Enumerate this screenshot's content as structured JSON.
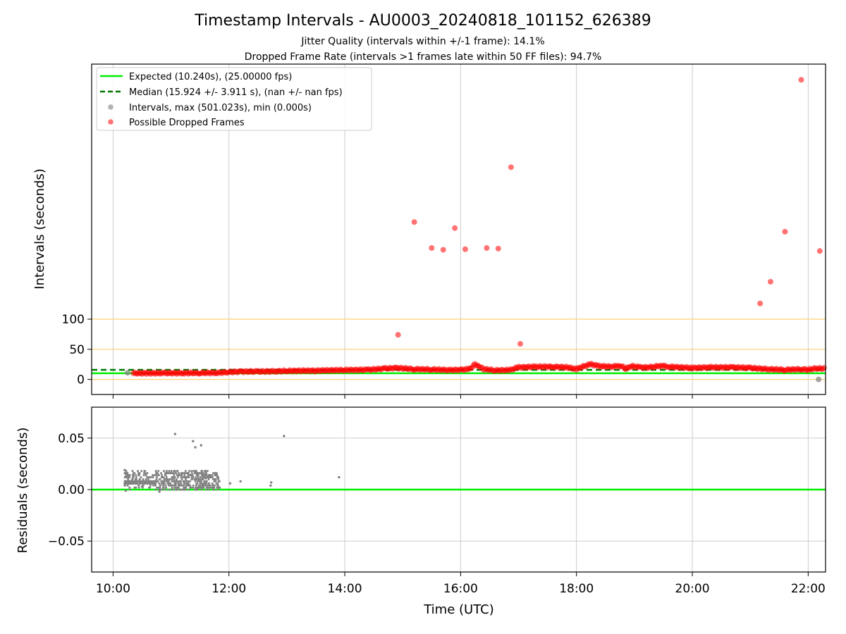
{
  "title": "Timestamp Intervals - AU0003_20240818_101152_626389",
  "subtitle_1": "Jitter Quality (intervals within +/-1 frame): 14.1%",
  "subtitle_2": "Dropped Frame Rate (intervals >1 frames late within 50 FF files): 94.7%",
  "colors": {
    "expected": "#00ee00",
    "median": "#007700",
    "intervals": "#808080",
    "dropped": "#ff0000",
    "threshold": "#ffd070",
    "grid": "#cccccc"
  },
  "chart_data": [
    {
      "type": "scatter",
      "panel": "top",
      "xlabel": "",
      "ylabel": "Intervals (seconds)",
      "x_unit": "hours UTC",
      "xlim": [
        9.63,
        22.3
      ],
      "ylim": [
        -25,
        523
      ],
      "xticks": [
        10,
        12,
        14,
        16,
        18,
        20,
        22
      ],
      "yticks": [
        0,
        50,
        100
      ],
      "ytick_labels": [
        "0",
        "50",
        "100"
      ],
      "grid": "vertical",
      "legend_position": "upper-left",
      "reference_lines": {
        "expected": 10.24,
        "median": 15.924,
        "thresholds": [
          0,
          50,
          100
        ]
      },
      "legend": [
        {
          "label": "Expected (10.240s), (25.00000 fps)",
          "kind": "line",
          "color": "#00ee00"
        },
        {
          "label": "Median (15.924 +/- 3.911 s), (nan +/- nan fps)",
          "kind": "dashed",
          "color": "#007700"
        },
        {
          "label": "Intervals, max (501.023s), min (0.000s)",
          "kind": "marker",
          "color": "#a0a0a0"
        },
        {
          "label": "Possible Dropped Frames",
          "kind": "marker",
          "color": "#ff6060"
        }
      ],
      "dropped_band": [
        [
          10.35,
          10.2
        ],
        [
          10.6,
          10.3
        ],
        [
          10.9,
          10.4
        ],
        [
          11.2,
          10.5
        ],
        [
          11.5,
          10.7
        ],
        [
          11.8,
          11.0
        ],
        [
          12.0,
          12.0
        ],
        [
          12.2,
          13.0
        ],
        [
          12.5,
          13.0
        ],
        [
          12.8,
          13.5
        ],
        [
          13.0,
          14.0
        ],
        [
          13.5,
          14.5
        ],
        [
          14.0,
          15.5
        ],
        [
          14.4,
          16.0
        ],
        [
          14.7,
          18.0
        ],
        [
          14.9,
          19.0
        ],
        [
          15.2,
          17.0
        ],
        [
          15.5,
          16.5
        ],
        [
          15.8,
          15.5
        ],
        [
          16.0,
          16.0
        ],
        [
          16.15,
          17.0
        ],
        [
          16.25,
          25.0
        ],
        [
          16.32,
          22.0
        ],
        [
          16.4,
          17.0
        ],
        [
          16.6,
          15.0
        ],
        [
          16.85,
          15.5
        ],
        [
          17.0,
          20.0
        ],
        [
          17.3,
          21.0
        ],
        [
          17.6,
          21.0
        ],
        [
          17.85,
          20.0
        ],
        [
          18.0,
          17.0
        ],
        [
          18.1,
          21.0
        ],
        [
          18.25,
          25.0
        ],
        [
          18.4,
          22.0
        ],
        [
          18.6,
          21.0
        ],
        [
          18.75,
          23.0
        ],
        [
          18.85,
          18.0
        ],
        [
          18.95,
          22.0
        ],
        [
          19.1,
          20.0
        ],
        [
          19.3,
          20.0
        ],
        [
          19.45,
          23.0
        ],
        [
          19.6,
          21.0
        ],
        [
          20.0,
          19.0
        ],
        [
          20.3,
          20.0
        ],
        [
          20.7,
          20.0
        ],
        [
          21.0,
          19.0
        ],
        [
          21.3,
          17.0
        ],
        [
          21.6,
          16.0
        ],
        [
          21.9,
          17.0
        ],
        [
          22.0,
          16.0
        ],
        [
          22.1,
          18.0
        ],
        [
          22.3,
          18.0
        ]
      ],
      "dropped_outliers": [
        [
          14.92,
          74
        ],
        [
          15.2,
          261
        ],
        [
          15.5,
          218
        ],
        [
          15.7,
          215
        ],
        [
          15.9,
          251
        ],
        [
          16.08,
          216
        ],
        [
          16.45,
          218
        ],
        [
          16.65,
          217
        ],
        [
          16.87,
          352
        ],
        [
          17.03,
          59
        ],
        [
          21.17,
          126
        ],
        [
          21.35,
          162
        ],
        [
          21.6,
          245
        ],
        [
          21.88,
          497
        ],
        [
          22.2,
          213
        ]
      ],
      "interval_points": [
        [
          10.25,
          11.0
        ],
        [
          22.18,
          0.0
        ]
      ]
    },
    {
      "type": "scatter",
      "panel": "bottom",
      "xlabel": "Time (UTC)",
      "ylabel": "Residuals (seconds)",
      "xlim": [
        9.63,
        22.3
      ],
      "ylim": [
        -0.08,
        0.08
      ],
      "xticks": [
        10,
        12,
        14,
        16,
        18,
        20,
        22
      ],
      "xtick_labels": [
        "10:00",
        "12:00",
        "14:00",
        "16:00",
        "18:00",
        "20:00",
        "22:00"
      ],
      "yticks": [
        0.05,
        0.0,
        -0.05
      ],
      "ytick_labels": [
        "0.05",
        "0.00",
        "−0.05"
      ],
      "grid": "both",
      "reference_line": 0.0,
      "cluster": {
        "x_range": [
          10.2,
          11.85
        ],
        "y_range": [
          0.0,
          0.018
        ]
      },
      "residual_points": [
        [
          11.07,
          0.054
        ],
        [
          11.38,
          0.047
        ],
        [
          11.42,
          0.041
        ],
        [
          11.52,
          0.043
        ],
        [
          12.95,
          0.052
        ],
        [
          13.9,
          0.012
        ],
        [
          12.2,
          0.008
        ],
        [
          12.02,
          0.006
        ],
        [
          12.73,
          0.007
        ],
        [
          12.72,
          0.004
        ],
        [
          10.2,
          0.019
        ],
        [
          10.24,
          0.016
        ],
        [
          10.22,
          -0.001
        ],
        [
          10.8,
          -0.002
        ],
        [
          11.8,
          0.012
        ],
        [
          11.83,
          0.002
        ],
        [
          11.6,
          0.011
        ],
        [
          11.3,
          0.016
        ],
        [
          11.55,
          0.016
        ],
        [
          10.5,
          0.003
        ]
      ]
    }
  ]
}
